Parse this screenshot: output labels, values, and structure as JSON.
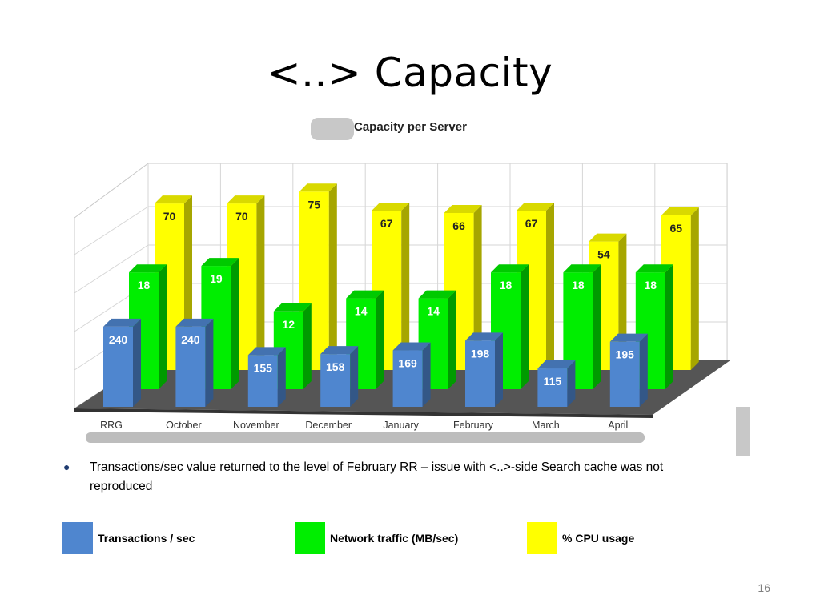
{
  "slide": {
    "title": "<..> Capacity",
    "bullet": "Transactions/sec value returned to the level of February RR – issue with <..>-side Search cache was not reproduced",
    "page_number": "16"
  },
  "chart_data": {
    "type": "bar",
    "title": "Capacity per Server",
    "categories": [
      "RRG",
      "October",
      "November",
      "December",
      "January",
      "February",
      "March",
      "April"
    ],
    "series": [
      {
        "name": "Transactions / sec",
        "color": "#4f86cf",
        "values": [
          240,
          240,
          155,
          158,
          169,
          198,
          115,
          195
        ]
      },
      {
        "name": "Network traffic (MB/sec)",
        "color": "#00ee00",
        "values": [
          18,
          19,
          12,
          14,
          14,
          18,
          18,
          18
        ]
      },
      {
        "name": "% CPU usage",
        "color": "#ffff00",
        "values": [
          70,
          70,
          75,
          67,
          66,
          67,
          54,
          65
        ]
      }
    ],
    "legend_position": "bottom",
    "grid": true
  },
  "legend": [
    {
      "label": "Transactions / sec",
      "color": "#4f86cf"
    },
    {
      "label": "Network traffic (MB/sec)",
      "color": "#00ee00"
    },
    {
      "label": "% CPU usage",
      "color": "#ffff00"
    }
  ]
}
